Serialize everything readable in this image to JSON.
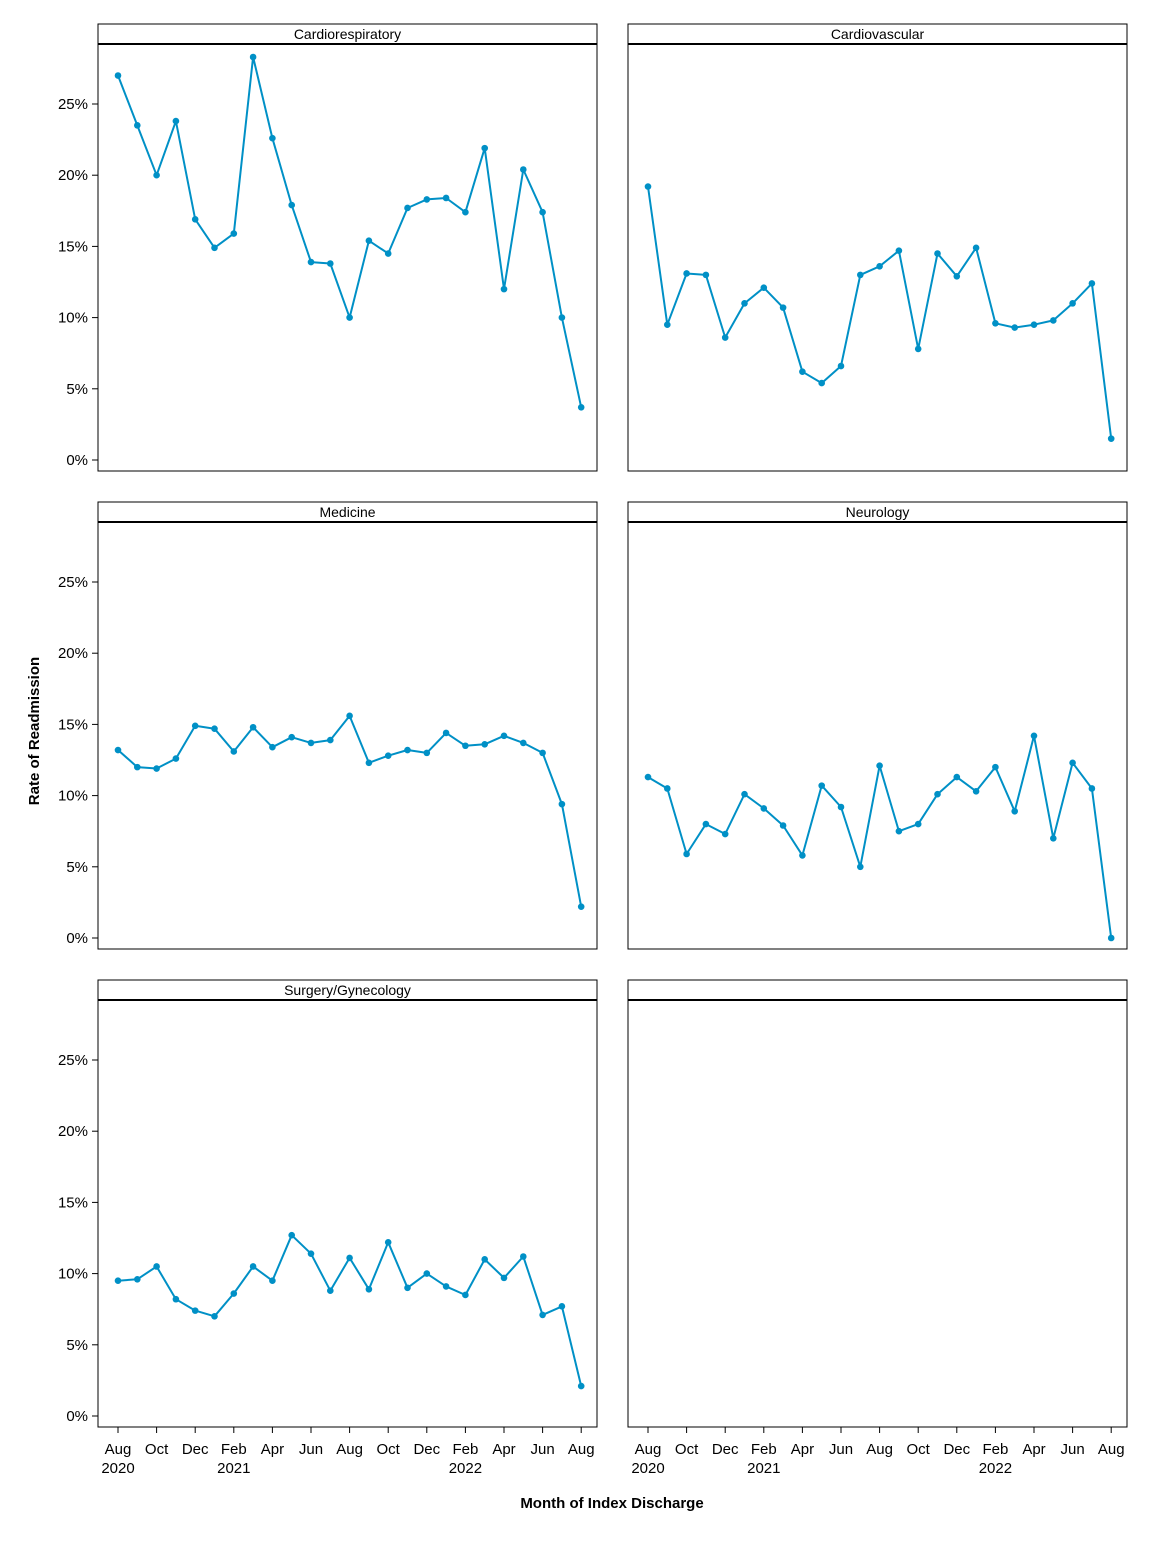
{
  "chart_data": {
    "type": "line",
    "layout": "facet-grid-3x2",
    "xlabel": "Month of Index Discharge",
    "ylabel": "Rate of Readmission",
    "ylim": [
      0,
      0.3
    ],
    "y_ticks": [
      0,
      0.05,
      0.1,
      0.15,
      0.2,
      0.25
    ],
    "y_tick_labels": [
      "0%",
      "5%",
      "10%",
      "15%",
      "20%",
      "25%"
    ],
    "x_months": [
      "2020-08",
      "2020-09",
      "2020-10",
      "2020-11",
      "2020-12",
      "2021-01",
      "2021-02",
      "2021-03",
      "2021-04",
      "2021-05",
      "2021-06",
      "2021-07",
      "2021-08",
      "2021-09",
      "2021-10",
      "2021-11",
      "2021-12",
      "2022-01",
      "2022-02",
      "2022-03",
      "2022-04",
      "2022-05",
      "2022-06",
      "2022-07",
      "2022-08"
    ],
    "x_ticks": [
      {
        "month": "2020-08",
        "label": "Aug",
        "year": "2020"
      },
      {
        "month": "2020-10",
        "label": "Oct",
        "year": ""
      },
      {
        "month": "2020-12",
        "label": "Dec",
        "year": ""
      },
      {
        "month": "2021-02",
        "label": "Feb",
        "year": "2021"
      },
      {
        "month": "2021-04",
        "label": "Apr",
        "year": ""
      },
      {
        "month": "2021-06",
        "label": "Jun",
        "year": ""
      },
      {
        "month": "2021-08",
        "label": "Aug",
        "year": ""
      },
      {
        "month": "2021-10",
        "label": "Oct",
        "year": ""
      },
      {
        "month": "2021-12",
        "label": "Dec",
        "year": ""
      },
      {
        "month": "2022-02",
        "label": "Feb",
        "year": "2022"
      },
      {
        "month": "2022-04",
        "label": "Apr",
        "year": ""
      },
      {
        "month": "2022-06",
        "label": "Jun",
        "year": ""
      },
      {
        "month": "2022-08",
        "label": "Aug",
        "year": ""
      }
    ],
    "grid": false,
    "colors": {
      "series": "#0090c6",
      "frame": "#000000"
    },
    "panels": [
      {
        "title": "Cardiorespiratory",
        "values": [
          0.27,
          0.235,
          0.2,
          0.238,
          0.169,
          0.149,
          0.159,
          0.283,
          0.226,
          0.179,
          0.139,
          0.138,
          0.1,
          0.154,
          0.145,
          0.177,
          0.183,
          0.184,
          0.174,
          0.219,
          0.12,
          0.204,
          0.174,
          0.1,
          0.037
        ]
      },
      {
        "title": "Cardiovascular",
        "values": [
          0.192,
          0.095,
          0.131,
          0.13,
          0.086,
          0.11,
          0.121,
          0.107,
          0.062,
          0.054,
          0.066,
          0.13,
          0.136,
          0.147,
          0.078,
          0.145,
          0.129,
          0.149,
          0.096,
          0.093,
          0.095,
          0.098,
          0.11,
          0.124,
          0.015
        ]
      },
      {
        "title": "Medicine",
        "values": [
          0.132,
          0.12,
          0.119,
          0.126,
          0.149,
          0.147,
          0.131,
          0.148,
          0.134,
          0.141,
          0.137,
          0.139,
          0.156,
          0.123,
          0.128,
          0.132,
          0.13,
          0.144,
          0.135,
          0.136,
          0.142,
          0.137,
          0.13,
          0.094,
          0.022
        ]
      },
      {
        "title": "Neurology",
        "values": [
          0.113,
          0.105,
          0.059,
          0.08,
          0.073,
          0.101,
          0.091,
          0.079,
          0.058,
          0.107,
          0.092,
          0.05,
          0.121,
          0.075,
          0.08,
          0.101,
          0.113,
          0.103,
          0.12,
          0.089,
          0.142,
          0.07,
          0.123,
          0.105,
          0.0
        ]
      },
      {
        "title": "Surgery/Gynecology",
        "values": [
          0.095,
          0.096,
          0.105,
          0.082,
          0.074,
          0.07,
          0.086,
          0.105,
          0.095,
          0.127,
          0.114,
          0.088,
          0.111,
          0.089,
          0.122,
          0.09,
          0.1,
          0.091,
          0.085,
          0.11,
          0.097,
          0.112,
          0.071,
          0.077,
          0.021
        ]
      },
      {
        "title": "",
        "values": []
      }
    ]
  }
}
